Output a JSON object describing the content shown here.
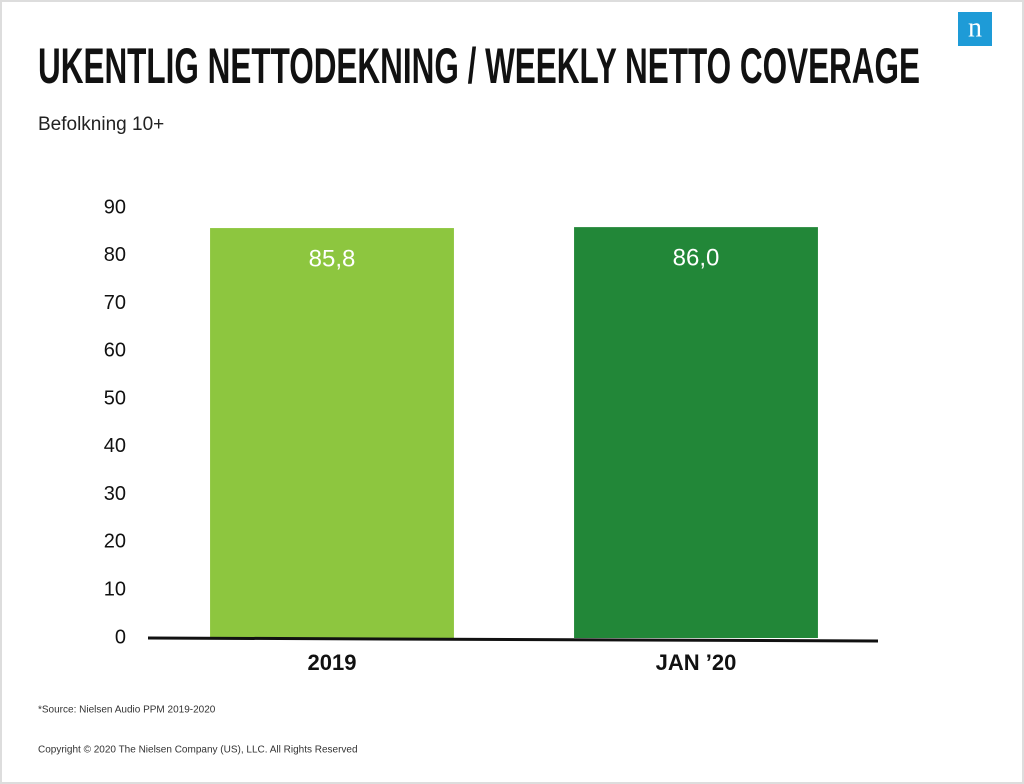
{
  "logo": "n",
  "chart_data": {
    "type": "bar",
    "title": "UKENTLIG NETTODEKNING / WEEKLY NETTO COVERAGE",
    "subtitle": "Befolkning 10+",
    "categories": [
      "2019",
      "JAN ’20"
    ],
    "values": [
      85.8,
      86.0
    ],
    "value_labels": [
      "85,8",
      "86,0"
    ],
    "colors": [
      "#8dc63f",
      "#228738"
    ],
    "ylim": [
      0,
      90
    ],
    "yticks": [
      0,
      10,
      20,
      30,
      40,
      50,
      60,
      70,
      80,
      90
    ],
    "grid": false
  },
  "footnote": "*Source: Nielsen Audio PPM 2019-2020",
  "copyright": "Copyright © 2020 The Nielsen Company (US), LLC. All Rights Reserved"
}
